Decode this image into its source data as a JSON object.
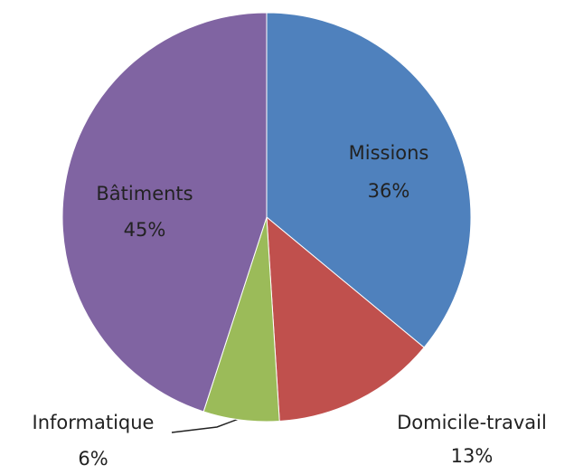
{
  "chart_data": {
    "type": "pie",
    "categories": [
      "Missions",
      "Domicile-travail",
      "Informatique",
      "Bâtiments"
    ],
    "values": [
      36,
      13,
      6,
      45
    ],
    "value_labels": [
      "36%",
      "13%",
      "6%",
      "45%"
    ],
    "colors": [
      "#4f81bd",
      "#c0504d",
      "#9bbb59",
      "#8064a2"
    ]
  }
}
